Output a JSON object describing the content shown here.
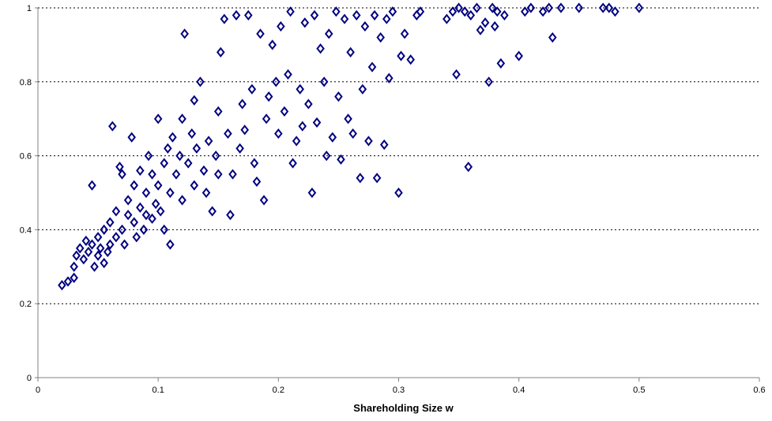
{
  "chart_data": {
    "type": "scatter",
    "title": "",
    "xlabel": "Shareholding Size w",
    "ylabel": "",
    "xlim": [
      0,
      0.6
    ],
    "ylim": [
      0,
      1
    ],
    "x_ticks": [
      "0",
      "0.1",
      "0.2",
      "0.3",
      "0.4",
      "0.5",
      "0.6"
    ],
    "y_ticks": [
      "0",
      "0.2",
      "0.4",
      "0.6",
      "0.8",
      "1"
    ],
    "grid": "horizontal dotted",
    "legend": "none",
    "marker": "diamond",
    "marker_color": "#000080",
    "series": [
      {
        "points": [
          [
            0.02,
            0.25
          ],
          [
            0.025,
            0.26
          ],
          [
            0.03,
            0.27
          ],
          [
            0.03,
            0.3
          ],
          [
            0.032,
            0.33
          ],
          [
            0.035,
            0.35
          ],
          [
            0.038,
            0.32
          ],
          [
            0.04,
            0.37
          ],
          [
            0.042,
            0.34
          ],
          [
            0.045,
            0.36
          ],
          [
            0.045,
            0.52
          ],
          [
            0.047,
            0.3
          ],
          [
            0.05,
            0.33
          ],
          [
            0.05,
            0.38
          ],
          [
            0.052,
            0.35
          ],
          [
            0.055,
            0.31
          ],
          [
            0.055,
            0.4
          ],
          [
            0.058,
            0.34
          ],
          [
            0.06,
            0.36
          ],
          [
            0.06,
            0.42
          ],
          [
            0.062,
            0.68
          ],
          [
            0.065,
            0.38
          ],
          [
            0.065,
            0.45
          ],
          [
            0.068,
            0.57
          ],
          [
            0.07,
            0.4
          ],
          [
            0.07,
            0.55
          ],
          [
            0.072,
            0.36
          ],
          [
            0.075,
            0.44
          ],
          [
            0.075,
            0.48
          ],
          [
            0.078,
            0.65
          ],
          [
            0.08,
            0.42
          ],
          [
            0.08,
            0.52
          ],
          [
            0.082,
            0.38
          ],
          [
            0.085,
            0.46
          ],
          [
            0.085,
            0.56
          ],
          [
            0.088,
            0.4
          ],
          [
            0.09,
            0.44
          ],
          [
            0.09,
            0.5
          ],
          [
            0.092,
            0.6
          ],
          [
            0.095,
            0.43
          ],
          [
            0.095,
            0.55
          ],
          [
            0.098,
            0.47
          ],
          [
            0.1,
            0.52
          ],
          [
            0.1,
            0.7
          ],
          [
            0.102,
            0.45
          ],
          [
            0.105,
            0.58
          ],
          [
            0.105,
            0.4
          ],
          [
            0.108,
            0.62
          ],
          [
            0.11,
            0.36
          ],
          [
            0.11,
            0.5
          ],
          [
            0.112,
            0.65
          ],
          [
            0.115,
            0.55
          ],
          [
            0.118,
            0.6
          ],
          [
            0.12,
            0.48
          ],
          [
            0.12,
            0.7
          ],
          [
            0.122,
            0.93
          ],
          [
            0.125,
            0.58
          ],
          [
            0.128,
            0.66
          ],
          [
            0.13,
            0.52
          ],
          [
            0.13,
            0.75
          ],
          [
            0.132,
            0.62
          ],
          [
            0.135,
            0.8
          ],
          [
            0.138,
            0.56
          ],
          [
            0.14,
            0.5
          ],
          [
            0.142,
            0.64
          ],
          [
            0.145,
            0.45
          ],
          [
            0.148,
            0.6
          ],
          [
            0.15,
            0.55
          ],
          [
            0.15,
            0.72
          ],
          [
            0.152,
            0.88
          ],
          [
            0.155,
            0.97
          ],
          [
            0.158,
            0.66
          ],
          [
            0.16,
            0.44
          ],
          [
            0.162,
            0.55
          ],
          [
            0.165,
            0.98
          ],
          [
            0.168,
            0.62
          ],
          [
            0.17,
            0.74
          ],
          [
            0.172,
            0.67
          ],
          [
            0.175,
            0.98
          ],
          [
            0.178,
            0.78
          ],
          [
            0.18,
            0.58
          ],
          [
            0.182,
            0.53
          ],
          [
            0.185,
            0.93
          ],
          [
            0.188,
            0.48
          ],
          [
            0.19,
            0.7
          ],
          [
            0.192,
            0.76
          ],
          [
            0.195,
            0.9
          ],
          [
            0.198,
            0.8
          ],
          [
            0.2,
            0.66
          ],
          [
            0.202,
            0.95
          ],
          [
            0.205,
            0.72
          ],
          [
            0.208,
            0.82
          ],
          [
            0.21,
            0.99
          ],
          [
            0.212,
            0.58
          ],
          [
            0.215,
            0.64
          ],
          [
            0.218,
            0.78
          ],
          [
            0.22,
            0.68
          ],
          [
            0.222,
            0.96
          ],
          [
            0.225,
            0.74
          ],
          [
            0.228,
            0.5
          ],
          [
            0.23,
            0.98
          ],
          [
            0.232,
            0.69
          ],
          [
            0.235,
            0.89
          ],
          [
            0.238,
            0.8
          ],
          [
            0.24,
            0.6
          ],
          [
            0.242,
            0.93
          ],
          [
            0.245,
            0.65
          ],
          [
            0.248,
            0.99
          ],
          [
            0.25,
            0.76
          ],
          [
            0.252,
            0.59
          ],
          [
            0.255,
            0.97
          ],
          [
            0.258,
            0.7
          ],
          [
            0.26,
            0.88
          ],
          [
            0.262,
            0.66
          ],
          [
            0.265,
            0.98
          ],
          [
            0.268,
            0.54
          ],
          [
            0.27,
            0.78
          ],
          [
            0.272,
            0.95
          ],
          [
            0.275,
            0.64
          ],
          [
            0.278,
            0.84
          ],
          [
            0.28,
            0.98
          ],
          [
            0.282,
            0.54
          ],
          [
            0.285,
            0.92
          ],
          [
            0.288,
            0.63
          ],
          [
            0.29,
            0.97
          ],
          [
            0.292,
            0.81
          ],
          [
            0.295,
            0.99
          ],
          [
            0.3,
            0.5
          ],
          [
            0.302,
            0.87
          ],
          [
            0.305,
            0.93
          ],
          [
            0.31,
            0.86
          ],
          [
            0.315,
            0.98
          ],
          [
            0.318,
            0.99
          ],
          [
            0.34,
            0.97
          ],
          [
            0.345,
            0.99
          ],
          [
            0.348,
            0.82
          ],
          [
            0.35,
            1.0
          ],
          [
            0.355,
            0.99
          ],
          [
            0.358,
            0.57
          ],
          [
            0.36,
            0.98
          ],
          [
            0.365,
            1.0
          ],
          [
            0.368,
            0.94
          ],
          [
            0.372,
            0.96
          ],
          [
            0.375,
            0.8
          ],
          [
            0.378,
            1.0
          ],
          [
            0.38,
            0.95
          ],
          [
            0.382,
            0.99
          ],
          [
            0.385,
            0.85
          ],
          [
            0.388,
            0.98
          ],
          [
            0.4,
            0.87
          ],
          [
            0.405,
            0.99
          ],
          [
            0.41,
            1.0
          ],
          [
            0.42,
            0.99
          ],
          [
            0.425,
            1.0
          ],
          [
            0.428,
            0.92
          ],
          [
            0.435,
            1.0
          ],
          [
            0.45,
            1.0
          ],
          [
            0.47,
            1.0
          ],
          [
            0.475,
            1.0
          ],
          [
            0.48,
            0.99
          ],
          [
            0.5,
            1.0
          ]
        ]
      }
    ]
  }
}
